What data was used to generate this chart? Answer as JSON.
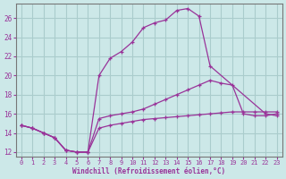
{
  "background_color": "#cce8e8",
  "grid_color": "#aacccc",
  "line_color": "#993399",
  "xlim": [
    -0.5,
    23.5
  ],
  "ylim": [
    11.5,
    27.5
  ],
  "yticks": [
    12,
    14,
    16,
    18,
    20,
    22,
    24,
    26
  ],
  "xticks": [
    0,
    1,
    2,
    3,
    4,
    5,
    6,
    7,
    8,
    9,
    10,
    11,
    12,
    13,
    14,
    15,
    16,
    17,
    18,
    19,
    20,
    21,
    22,
    23
  ],
  "xlabel": "Windchill (Refroidissement éolien,°C)",
  "line1_x": [
    0,
    1,
    2,
    3,
    4,
    5,
    6,
    7,
    8,
    9,
    10,
    11,
    12,
    13,
    14,
    15,
    16,
    17,
    22,
    23
  ],
  "line1_y": [
    14.8,
    14.5,
    14.0,
    13.5,
    12.2,
    12.0,
    12.0,
    20.0,
    21.8,
    22.5,
    23.5,
    25.0,
    25.5,
    25.8,
    26.8,
    27.0,
    26.2,
    21.0,
    16.0,
    15.8
  ],
  "line2_x": [
    0,
    1,
    2,
    3,
    4,
    5,
    6,
    7,
    8,
    9,
    10,
    11,
    12,
    13,
    14,
    15,
    16,
    17,
    18,
    19,
    20,
    21,
    22,
    23
  ],
  "line2_y": [
    14.8,
    14.5,
    14.0,
    13.5,
    12.2,
    12.0,
    12.0,
    15.5,
    15.8,
    16.0,
    16.2,
    16.5,
    17.0,
    17.5,
    18.0,
    18.5,
    19.0,
    19.5,
    19.2,
    19.0,
    16.0,
    15.8,
    15.8,
    16.0
  ],
  "line3_x": [
    0,
    1,
    2,
    3,
    4,
    5,
    6,
    7,
    8,
    9,
    10,
    11,
    12,
    13,
    14,
    15,
    16,
    17,
    18,
    19,
    20,
    21,
    22,
    23
  ],
  "line3_y": [
    14.8,
    14.5,
    14.0,
    13.5,
    12.2,
    12.0,
    12.0,
    14.5,
    14.8,
    15.0,
    15.2,
    15.4,
    15.5,
    15.6,
    15.7,
    15.8,
    15.9,
    16.0,
    16.1,
    16.2,
    16.2,
    16.2,
    16.2,
    16.2
  ]
}
